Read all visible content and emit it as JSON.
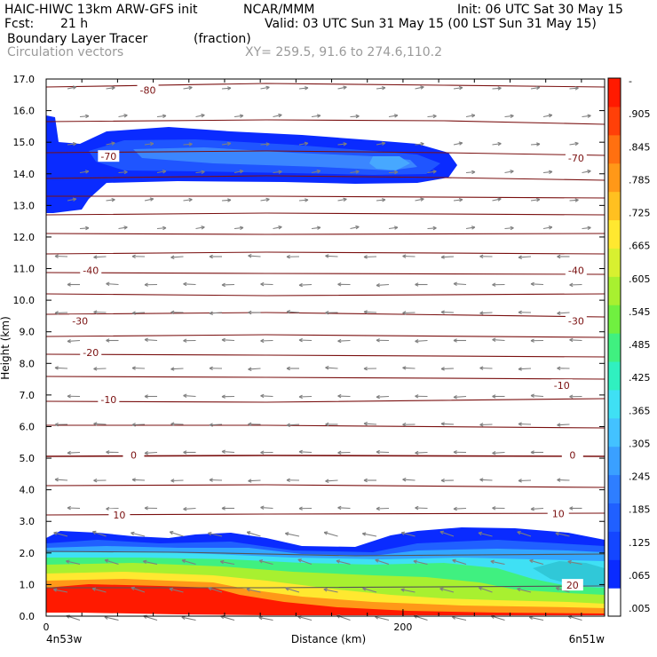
{
  "header": {
    "model": "HAIC-HIWC 13km ARW-GFS init",
    "org": "NCAR/MMM",
    "init": "Init: 06 UTC Sat 30 May 15",
    "fcst_label": "Fcst:",
    "fcst_value": "21 h",
    "valid": "Valid: 03 UTC Sun 31 May 15 (00 LST Sun 31 May 15)",
    "field": "Boundary Layer Tracer",
    "field_units": "(fraction)",
    "overlay": "Circulation vectors",
    "xy": "XY= 259.5, 91.6 to 274.6,110.2"
  },
  "colors": {
    "contour": "#7a1010",
    "vectors": "#7f7f7f",
    "palette": [
      "#ffffff",
      "#0a2bff",
      "#1446ff",
      "#2060ff",
      "#2e7eff",
      "#3aa0ff",
      "#43c2ff",
      "#3fe0f4",
      "#30f0c0",
      "#40f080",
      "#70f040",
      "#a8f030",
      "#d8f030",
      "#ffe830",
      "#ffc020",
      "#ff9818",
      "#ff7010",
      "#ff4008",
      "#ff1a00"
    ]
  },
  "chart_data": {
    "type": "heatmap",
    "title": "Boundary Layer Tracer (fraction)",
    "ylabel": "Height (km)",
    "xlabel": "Distance (km)",
    "xlim": [
      0,
      313
    ],
    "ylim": [
      0,
      17
    ],
    "y_ticks": [
      "0.0",
      "1.0",
      "2.0",
      "3.0",
      "4.0",
      "5.0",
      "6.0",
      "7.0",
      "8.0",
      "9.0",
      "10.0",
      "11.0",
      "12.0",
      "13.0",
      "14.0",
      "15.0",
      "16.0",
      "17.0"
    ],
    "x_ticks": [
      {
        "value": 0,
        "label": "0"
      },
      {
        "value": 200,
        "label": "200"
      }
    ],
    "x_endpoint_labels": [
      "4n53w",
      "6n51w"
    ],
    "colorbar_labels": [
      "-",
      ".905",
      ".845",
      ".785",
      ".725",
      ".665",
      ".605",
      ".545",
      ".485",
      ".425",
      ".365",
      ".305",
      ".245",
      ".185",
      ".125",
      ".065",
      ".005"
    ],
    "contour_labels": [
      {
        "text": "-80",
        "x": 57,
        "y": 16.65
      },
      {
        "text": "-70",
        "x": 35,
        "y": 14.55
      },
      {
        "text": "-70",
        "x": 297,
        "y": 14.5
      },
      {
        "text": "-40",
        "x": 25,
        "y": 10.95
      },
      {
        "text": "-40",
        "x": 297,
        "y": 10.95
      },
      {
        "text": "-30",
        "x": 19,
        "y": 9.35
      },
      {
        "text": "-30",
        "x": 297,
        "y": 9.35
      },
      {
        "text": "-20",
        "x": 25,
        "y": 8.35
      },
      {
        "text": "-10",
        "x": 35,
        "y": 6.85
      },
      {
        "text": "-10",
        "x": 289,
        "y": 7.3
      },
      {
        "text": "0",
        "x": 49,
        "y": 5.1
      },
      {
        "text": "0",
        "x": 295,
        "y": 5.1
      },
      {
        "text": "10",
        "x": 41,
        "y": 3.2
      },
      {
        "text": "10",
        "x": 287,
        "y": 3.25
      },
      {
        "text": "20",
        "x": 295,
        "y": 0.98
      }
    ]
  }
}
